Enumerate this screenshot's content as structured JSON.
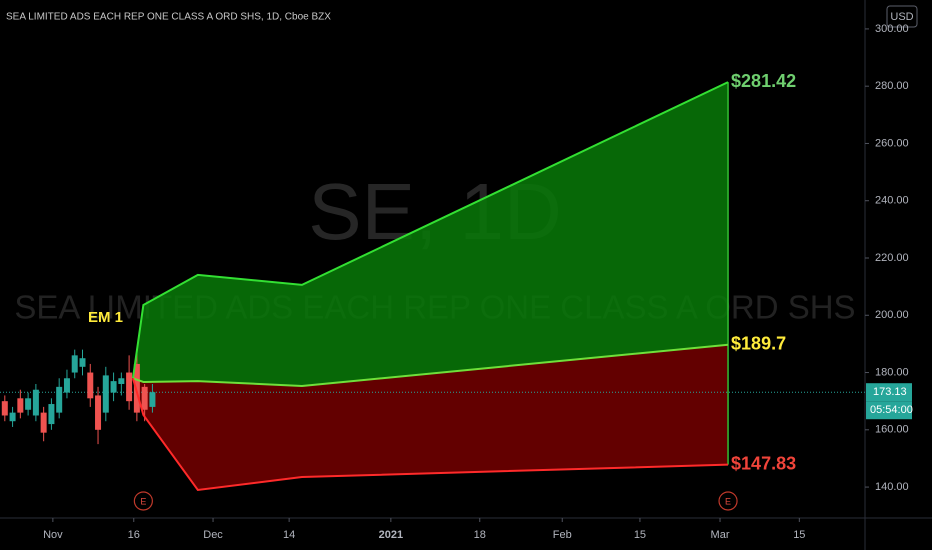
{
  "chart_data": {
    "type": "candlestick",
    "title": "SEA LIMITED ADS EACH REP ONE CLASS A ORD SHS, 1D, Cboe BZX",
    "watermark_symbol": "SE, 1D",
    "watermark_name": "SEA LIMITED ADS EACH REP ONE CLASS A ORD SHS",
    "currency": "USD",
    "annotation": "EM 1",
    "up_color": "#26a69a",
    "down_color": "#ef5350",
    "x": [
      0.6,
      1.57,
      2.54,
      3.51,
      4.48,
      5.45,
      6.42,
      7.39,
      8.36,
      9.33,
      10.3,
      11.27,
      12.24,
      13.21,
      14.18,
      15.15,
      16.12,
      17.09,
      18.06,
      19.03
    ],
    "open": [
      170,
      163,
      171,
      167,
      165,
      166,
      162,
      166,
      173,
      180,
      182,
      180,
      172,
      166,
      173,
      176,
      180,
      183,
      175,
      168
    ],
    "high": [
      172,
      168,
      174,
      173,
      176,
      168,
      171,
      178,
      181,
      188,
      188,
      183,
      175,
      182,
      180,
      180,
      186,
      187,
      176,
      176
    ],
    "low": [
      163,
      161,
      164,
      165,
      163,
      156,
      160,
      164,
      171,
      178,
      179,
      168,
      155,
      163,
      170,
      172,
      167,
      163,
      163,
      166
    ],
    "close": [
      165,
      166,
      166,
      171,
      174,
      159,
      169,
      175,
      178,
      186,
      185,
      171,
      160,
      179,
      177,
      178,
      170,
      166,
      167,
      173.13
    ],
    "bands_x": [
      16.6,
      17.9,
      24.7,
      37.7,
      90.9
    ],
    "lines": [
      {
        "values": [
          178,
          203.6,
          214.1,
          210.6,
          281.42
        ],
        "color": "#33e033",
        "end_label": "$281.42",
        "label_color": "#6fcf6f"
      },
      {
        "values": [
          178,
          176.7,
          177,
          175.3,
          189.7
        ],
        "color": "#6fe03a",
        "end_label": "$189.7",
        "label_color": "#ffeb3b"
      },
      {
        "values": [
          178,
          165.2,
          139,
          143.5,
          147.83
        ],
        "color": "#ff2a2a",
        "end_label": "$147.83",
        "label_color": "#f0443a"
      }
    ],
    "upper_fill": "#087a08",
    "lower_fill": "#6e0000",
    "last_price": 173.13,
    "countdown": "05:54:00",
    "earnings_x": [
      17.9,
      90.9
    ],
    "earnings_label": "E",
    "xlim": [
      0,
      108
    ],
    "xticks": [
      {
        "value": 6.6,
        "label": "Nov"
      },
      {
        "value": 16.7,
        "label": "16"
      },
      {
        "value": 26.6,
        "label": "Dec"
      },
      {
        "value": 36.1,
        "label": "14"
      },
      {
        "value": 48.8,
        "label": "2021"
      },
      {
        "value": 59.9,
        "label": "18"
      },
      {
        "value": 70.2,
        "label": "Feb"
      },
      {
        "value": 79.9,
        "label": "15"
      },
      {
        "value": 89.9,
        "label": "Mar"
      },
      {
        "value": 99.8,
        "label": "15"
      }
    ],
    "ylim": [
      129.2,
      310.1
    ],
    "yticks": [
      {
        "value": 140,
        "label": "140.00"
      },
      {
        "value": 160,
        "label": "160.00"
      },
      {
        "value": 180,
        "label": "180.00"
      },
      {
        "value": 200,
        "label": "200.00"
      },
      {
        "value": 220,
        "label": "220.00"
      },
      {
        "value": 240,
        "label": "240.00"
      },
      {
        "value": 260,
        "label": "260.00"
      },
      {
        "value": 280,
        "label": "280.00"
      },
      {
        "value": 300,
        "label": "300.00"
      }
    ],
    "grid": false
  }
}
